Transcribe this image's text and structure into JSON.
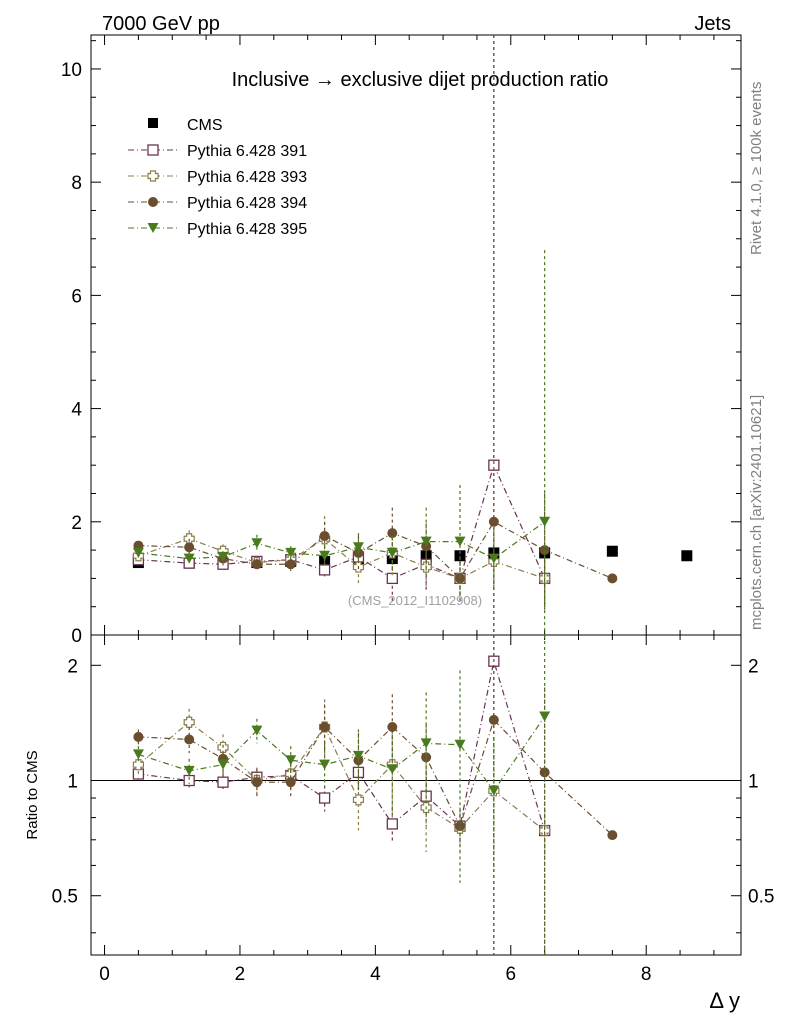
{
  "header": {
    "left": "7000 GeV pp",
    "right": "Jets"
  },
  "side": {
    "rivet": "Rivet 4.1.0, ≥ 100k events",
    "mcplots": "mcplots.cern.ch [arXiv:2401.10621]"
  },
  "chart_data": {
    "type": "scatter",
    "title": "Inclusive → exclusive dijet production ratio",
    "watermark": "(CMS_2012_I1102908)",
    "xlabel": "Δ y",
    "ylabel_ratio": "Ratio to CMS",
    "xlim": [
      -0.2,
      9.4
    ],
    "ylim": [
      0,
      10.6
    ],
    "ratio_ylim": [
      0.35,
      2.4
    ],
    "x_ticks": [
      "0",
      "2",
      "4",
      "6",
      "8"
    ],
    "y_ticks": [
      "0",
      "2",
      "4",
      "6",
      "8",
      "10"
    ],
    "ratio_ticks": [
      "0.5",
      "1",
      "2"
    ],
    "legend": [
      "CMS",
      "Pythia 6.428 391",
      "Pythia 6.428 393",
      "Pythia 6.428 394",
      "Pythia 6.428 395"
    ],
    "data": {
      "name": "CMS",
      "x": [
        0.5,
        1.25,
        1.75,
        2.25,
        2.75,
        3.25,
        3.75,
        4.25,
        4.75,
        5.25,
        5.75,
        6.5,
        7.5,
        8.6
      ],
      "y": [
        1.28,
        1.27,
        1.27,
        1.28,
        1.3,
        1.3,
        1.32,
        1.35,
        1.4,
        1.4,
        1.45,
        1.45,
        1.48,
        1.4
      ]
    },
    "series": [
      {
        "name": "Pythia 6.428 391",
        "color": "#6b3350",
        "marker": "open-square",
        "x": [
          0.5,
          1.25,
          1.75,
          2.25,
          2.75,
          3.25,
          3.75,
          4.25,
          4.75,
          5.25,
          5.75,
          6.5
        ],
        "y": [
          1.33,
          1.27,
          1.25,
          1.3,
          1.33,
          1.15,
          1.38,
          1.0,
          1.25,
          1.0,
          3.0,
          1.0
        ],
        "err": [
          0.05,
          0.08,
          0.06,
          0.08,
          0.1,
          0.15,
          0.25,
          0.4,
          0.45,
          0.4,
          50,
          0.55
        ],
        "ratio": [
          1.04,
          1.0,
          0.99,
          1.02,
          1.03,
          0.9,
          1.05,
          0.77,
          0.91,
          0.76,
          2.05,
          0.74
        ],
        "rerr": [
          0.04,
          0.05,
          0.05,
          0.06,
          0.08,
          0.07,
          0.1,
          0.08,
          0.15,
          0.06,
          5,
          0.1
        ]
      },
      {
        "name": "Pythia 6.428 393",
        "color": "#8a7d4a",
        "marker": "open-cross",
        "x": [
          0.5,
          1.25,
          1.75,
          2.25,
          2.75,
          3.25,
          3.75,
          4.25,
          4.75,
          5.25,
          5.75,
          6.5
        ],
        "y": [
          1.4,
          1.7,
          1.48,
          1.28,
          1.33,
          1.7,
          1.2,
          1.45,
          1.2,
          1.0,
          1.3,
          1.0
        ],
        "err": [
          0.1,
          0.15,
          0.12,
          0.1,
          0.1,
          0.4,
          0.3,
          0.4,
          0.35,
          0.3,
          0.4,
          0.5
        ],
        "ratio": [
          1.1,
          1.42,
          1.22,
          1.0,
          1.04,
          1.38,
          0.89,
          1.1,
          0.85,
          0.75,
          0.94,
          0.74
        ],
        "rerr": [
          0.08,
          0.12,
          0.1,
          0.08,
          0.08,
          0.25,
          0.15,
          0.3,
          0.2,
          0.1,
          0.3,
          0.1
        ]
      },
      {
        "name": "Pythia 6.428 394",
        "color": "#6b4e30",
        "marker": "filled-circle",
        "x": [
          0.5,
          1.25,
          1.75,
          2.25,
          2.75,
          3.25,
          3.75,
          4.25,
          4.75,
          5.25,
          5.75,
          6.5,
          7.5
        ],
        "y": [
          1.58,
          1.55,
          1.35,
          1.25,
          1.25,
          1.75,
          1.45,
          1.8,
          1.57,
          1.0,
          2.0,
          1.5,
          1.0
        ],
        "err": [
          0.08,
          0.15,
          0.12,
          0.1,
          0.12,
          0.25,
          0.3,
          0.45,
          0.4,
          0.3,
          50,
          1.0,
          0.05
        ],
        "ratio": [
          1.3,
          1.28,
          1.14,
          0.99,
          0.99,
          1.38,
          1.13,
          1.38,
          1.15,
          0.76,
          1.44,
          1.05,
          0.72
        ],
        "rerr": [
          0.06,
          0.1,
          0.1,
          0.08,
          0.08,
          0.2,
          0.2,
          0.3,
          0.25,
          0.08,
          5,
          0.7,
          0.02
        ]
      },
      {
        "name": "Pythia 6.428 395",
        "color": "#4a7a1e",
        "marker": "filled-triangle-down",
        "x": [
          0.5,
          1.25,
          1.75,
          2.25,
          2.75,
          3.25,
          3.75,
          4.25,
          4.75,
          5.25,
          5.75,
          6.5
        ],
        "y": [
          1.45,
          1.35,
          1.38,
          1.62,
          1.45,
          1.4,
          1.55,
          1.45,
          1.65,
          1.65,
          1.35,
          2.0
        ],
        "err": [
          0.08,
          0.1,
          0.1,
          0.15,
          0.12,
          0.2,
          0.25,
          0.3,
          0.6,
          1.0,
          0.5,
          4.8
        ],
        "ratio": [
          1.17,
          1.06,
          1.1,
          1.35,
          1.13,
          1.1,
          1.16,
          1.07,
          1.25,
          1.24,
          0.94,
          1.47
        ],
        "rerr": [
          0.06,
          0.08,
          0.08,
          0.1,
          0.1,
          0.15,
          0.2,
          0.25,
          0.45,
          0.7,
          0.35,
          3.5
        ]
      }
    ]
  }
}
